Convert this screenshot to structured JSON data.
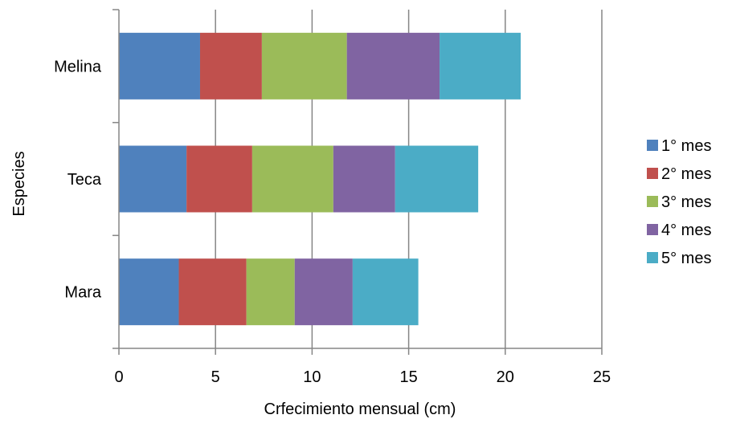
{
  "chart_data": {
    "type": "bar",
    "orientation": "horizontal",
    "stacked": true,
    "title": "",
    "xlabel": "Crfecimiento mensual  (cm)",
    "ylabel": "Especies",
    "categories": [
      "Melina",
      "Teca",
      "Mara"
    ],
    "xlim": [
      0,
      25
    ],
    "xticks": [
      "0",
      "5",
      "10",
      "15",
      "20",
      "25"
    ],
    "grid": "vertical",
    "legend_position": "right",
    "series": [
      {
        "name": "1° mes",
        "color": "#4F81BD",
        "values": [
          4.2,
          3.5,
          3.1
        ]
      },
      {
        "name": "2° mes",
        "color": "#C0504D",
        "values": [
          3.2,
          3.4,
          3.5
        ]
      },
      {
        "name": "3° mes",
        "color": "#9BBB59",
        "values": [
          4.4,
          4.2,
          2.5
        ]
      },
      {
        "name": "4° mes",
        "color": "#8064A2",
        "values": [
          4.8,
          3.2,
          3.0
        ]
      },
      {
        "name": "5° mes",
        "color": "#4BACC6",
        "values": [
          4.2,
          4.3,
          3.4
        ]
      }
    ]
  }
}
